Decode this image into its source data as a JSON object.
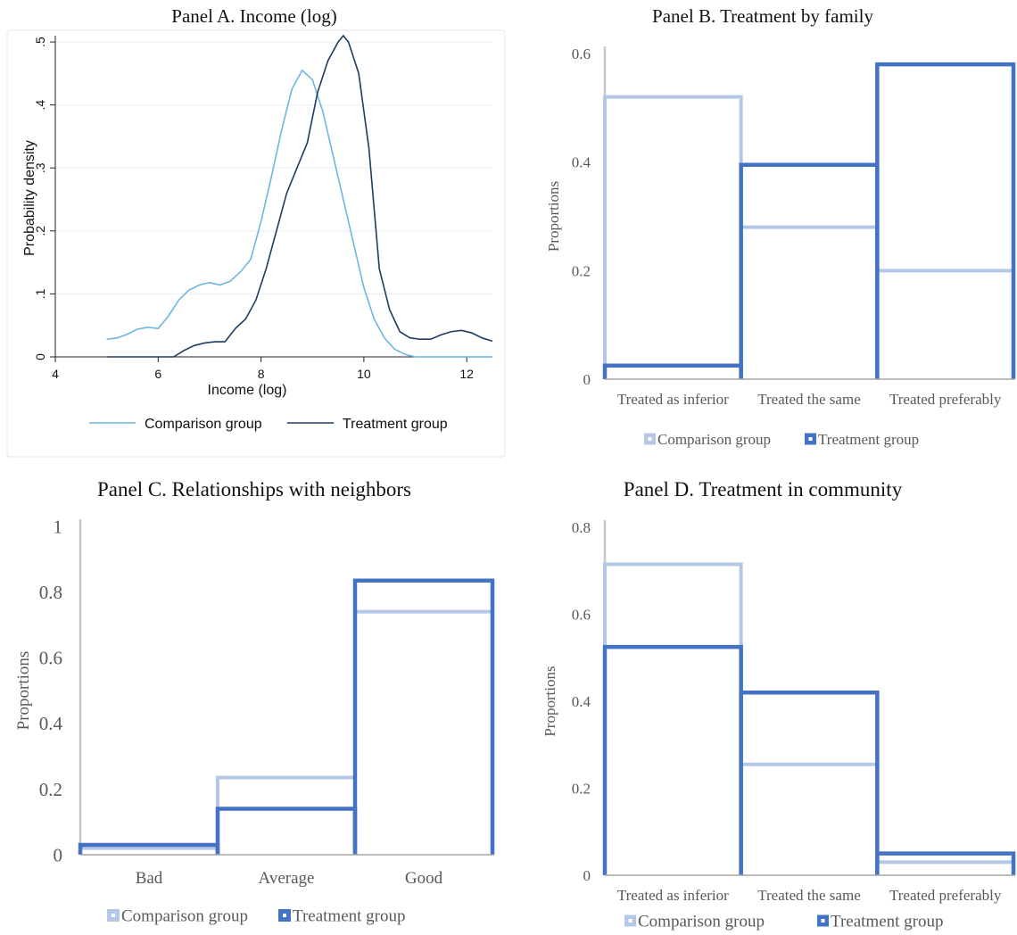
{
  "chart_data": [
    {
      "type": "line",
      "title": "Panel A. Income (log)",
      "xlabel": "Income (log)",
      "ylabel": "Probability density",
      "xlim": [
        4,
        12.5
      ],
      "ylim": [
        0,
        0.51
      ],
      "xticks": [
        "4",
        "6",
        "8",
        "10",
        "12"
      ],
      "yticks": [
        "0",
        ".1",
        ".2",
        ".3",
        ".4",
        ".5"
      ],
      "grid": true,
      "legend": "bottom",
      "series": [
        {
          "name": "Comparison group",
          "color": "#6cb6e0",
          "x": [
            5.0,
            5.2,
            5.4,
            5.6,
            5.8,
            6.0,
            6.2,
            6.4,
            6.6,
            6.8,
            7.0,
            7.2,
            7.4,
            7.6,
            7.8,
            8.0,
            8.2,
            8.4,
            8.6,
            8.8,
            9.0,
            9.2,
            9.4,
            9.6,
            9.8,
            10.0,
            10.2,
            10.4,
            10.6,
            10.8,
            11.0,
            11.4,
            12.0,
            12.5
          ],
          "y": [
            0.028,
            0.03,
            0.036,
            0.044,
            0.047,
            0.045,
            0.065,
            0.09,
            0.106,
            0.114,
            0.118,
            0.114,
            0.12,
            0.135,
            0.155,
            0.215,
            0.285,
            0.36,
            0.425,
            0.455,
            0.44,
            0.39,
            0.32,
            0.25,
            0.18,
            0.11,
            0.06,
            0.03,
            0.012,
            0.004,
            0.0,
            0.0,
            0.0,
            0.0
          ]
        },
        {
          "name": "Treatment group",
          "color": "#1f3a63",
          "x": [
            5.0,
            5.5,
            6.0,
            6.3,
            6.5,
            6.7,
            6.9,
            7.1,
            7.3,
            7.5,
            7.7,
            7.9,
            8.1,
            8.3,
            8.5,
            8.7,
            8.9,
            9.1,
            9.3,
            9.5,
            9.6,
            9.7,
            9.9,
            10.1,
            10.3,
            10.5,
            10.7,
            10.9,
            11.1,
            11.3,
            11.5,
            11.7,
            11.9,
            12.1,
            12.3,
            12.5
          ],
          "y": [
            0.0,
            0.0,
            0.0,
            0.0,
            0.01,
            0.018,
            0.022,
            0.024,
            0.024,
            0.045,
            0.06,
            0.09,
            0.14,
            0.2,
            0.26,
            0.3,
            0.34,
            0.42,
            0.47,
            0.5,
            0.51,
            0.5,
            0.45,
            0.33,
            0.14,
            0.075,
            0.04,
            0.03,
            0.028,
            0.028,
            0.035,
            0.04,
            0.042,
            0.038,
            0.03,
            0.025
          ]
        }
      ]
    },
    {
      "type": "bar",
      "title": "Panel B. Treatment by family",
      "ylabel": "Proportions",
      "categories": [
        "Treated as inferior",
        "Treated the same",
        "Treated preferably"
      ],
      "ylim": [
        0,
        0.6
      ],
      "yticks": [
        "0",
        "0.2",
        "0.4",
        "0.6"
      ],
      "legend": "bottom",
      "series": [
        {
          "name": "Comparison group",
          "color": "#b4c7e7",
          "values": [
            0.52,
            0.28,
            0.2
          ]
        },
        {
          "name": "Treatment group",
          "color": "#4472c4",
          "values": [
            0.025,
            0.395,
            0.58
          ]
        }
      ]
    },
    {
      "type": "bar",
      "title": "Panel C. Relationships with neighbors",
      "ylabel": "Proportions",
      "categories": [
        "Bad",
        "Average",
        "Good"
      ],
      "ylim": [
        0,
        1
      ],
      "yticks": [
        "0",
        "0.2",
        "0.4",
        "0.6",
        "0.8",
        "1"
      ],
      "legend": "bottom",
      "series": [
        {
          "name": "Comparison group",
          "color": "#b4c7e7",
          "values": [
            0.02,
            0.235,
            0.74
          ]
        },
        {
          "name": "Treatment group",
          "color": "#4472c4",
          "values": [
            0.03,
            0.14,
            0.835
          ]
        }
      ]
    },
    {
      "type": "bar",
      "title": "Panel D. Treatment in community",
      "ylabel": "Proportions",
      "categories": [
        "Treated as inferior",
        "Treated the same",
        "Treated preferably"
      ],
      "ylim": [
        0,
        0.8
      ],
      "yticks": [
        "0",
        "0.2",
        "0.4",
        "0.6",
        "0.8"
      ],
      "legend": "bottom",
      "series": [
        {
          "name": "Comparison group",
          "color": "#b4c7e7",
          "values": [
            0.715,
            0.255,
            0.03
          ]
        },
        {
          "name": "Treatment group",
          "color": "#4472c4",
          "values": [
            0.525,
            0.42,
            0.05
          ]
        }
      ]
    }
  ]
}
